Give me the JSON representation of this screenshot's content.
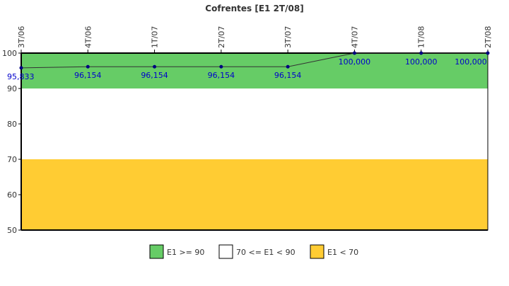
{
  "chart_data": {
    "type": "line",
    "title": "Cofrentes [E1 2T/08]",
    "xlabel": "",
    "ylabel": "",
    "categories": [
      "3T/06",
      "4T/06",
      "1T/07",
      "2T/07",
      "3T/07",
      "4T/07",
      "1T/08",
      "2T/08"
    ],
    "series": [
      {
        "values": [
          95.833,
          96.154,
          96.154,
          96.154,
          96.154,
          100.0,
          100.0,
          100.0
        ],
        "labels": [
          "95,833",
          "96,154",
          "96,154",
          "96,154",
          "96,154",
          "100,000",
          "100,000",
          "100,000"
        ],
        "color": "#000080"
      }
    ],
    "ylim": [
      50,
      100
    ],
    "yticks": [
      50,
      60,
      70,
      80,
      90,
      100
    ],
    "grid": false,
    "legend_position": "bottom",
    "bands": [
      {
        "from": 90,
        "to": 100,
        "color": "#66cc66",
        "label": "E1 >= 90"
      },
      {
        "from": 70,
        "to": 90,
        "color": "#ffffff",
        "label": "70 <= E1 < 90"
      },
      {
        "from": 50,
        "to": 70,
        "color": "#ffcc33",
        "label": "E1 < 70"
      }
    ]
  }
}
